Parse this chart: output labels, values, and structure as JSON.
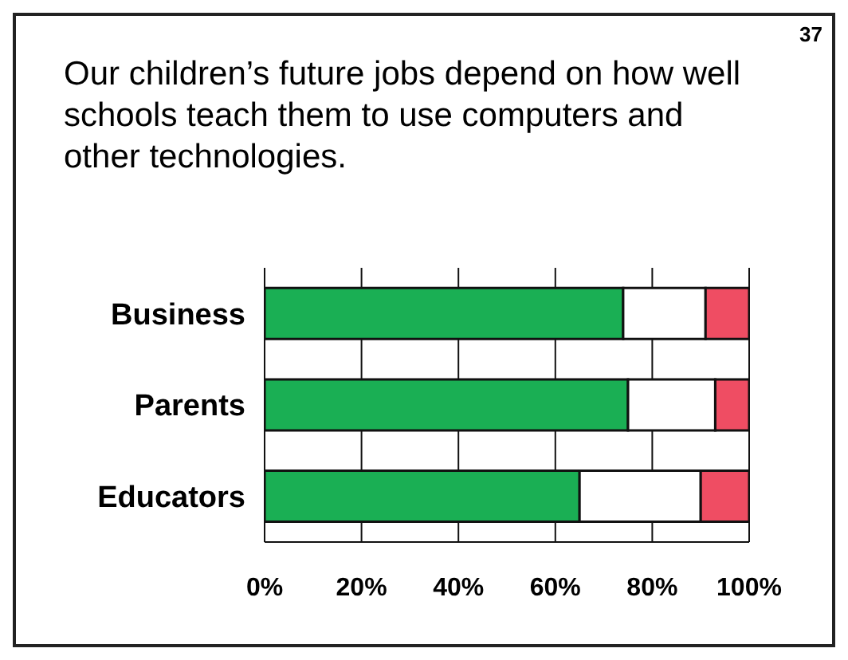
{
  "chart_data": {
    "type": "bar",
    "orientation": "horizontal",
    "stacked": true,
    "title": "Our children’s future jobs depend on how well schools teach them to use computers and other technologies.",
    "annotations": [
      "37"
    ],
    "categories": [
      "Business",
      "Parents",
      "Educators"
    ],
    "series": [
      {
        "color": "#1aaf54",
        "values": [
          74,
          75,
          65
        ]
      },
      {
        "color": "#ffffff",
        "values": [
          17,
          18,
          25
        ]
      },
      {
        "color": "#ef4d63",
        "values": [
          9,
          7,
          10
        ]
      }
    ],
    "xlim": [
      0,
      100
    ],
    "xticks": [
      {
        "value": 0,
        "label": "0%"
      },
      {
        "value": 20,
        "label": "20%"
      },
      {
        "value": 40,
        "label": "40%"
      },
      {
        "value": 60,
        "label": "60%"
      },
      {
        "value": 80,
        "label": "80%"
      },
      {
        "value": 100,
        "label": "100%"
      }
    ],
    "grid": "x"
  }
}
